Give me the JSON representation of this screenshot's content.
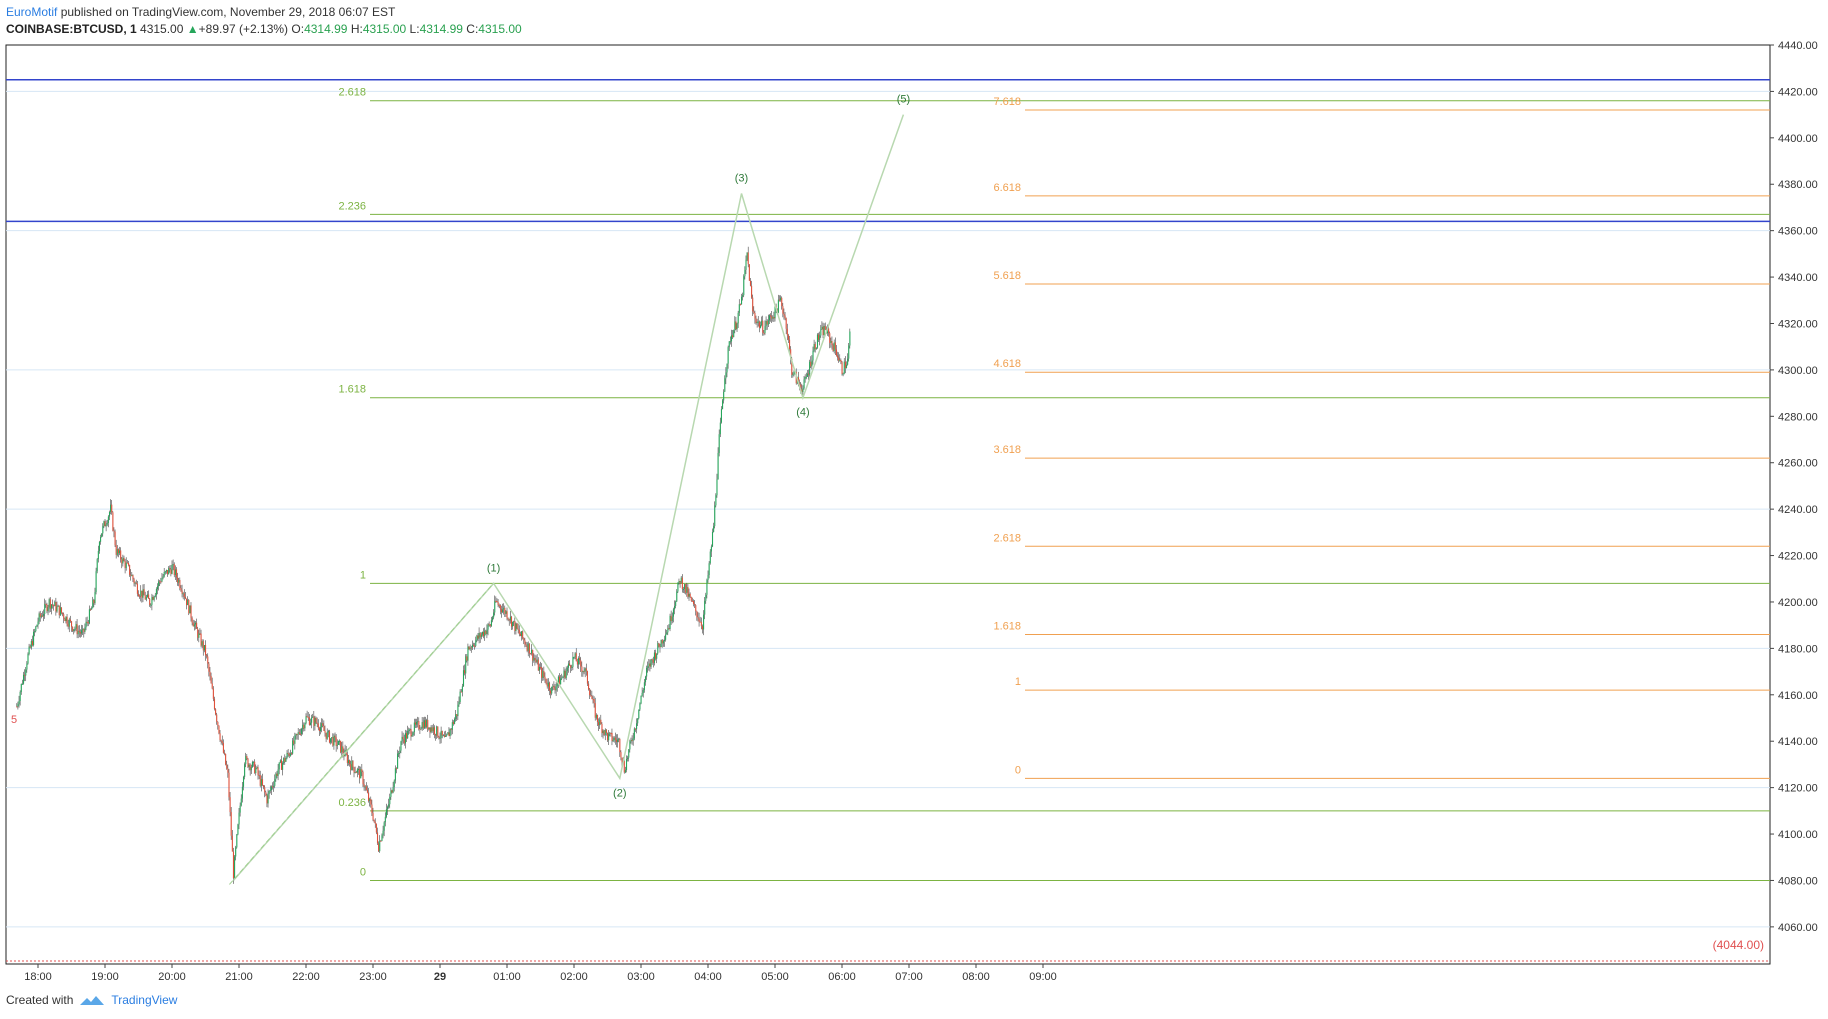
{
  "header": {
    "brand": "EuroMotif",
    "published": " published on TradingView.com, November 29, 2018 06:07 EST",
    "symbol": "COINBASE:BTCUSD, 1",
    "price": "4315.00",
    "change": "+89.97 (+2.13%)",
    "o_label": "O:",
    "o_value": "4314.99",
    "h_label": "H:",
    "h_value": "4315.00",
    "l_label": "L:",
    "l_value": "4314.99",
    "c_label": "C:",
    "c_value": "4315.00"
  },
  "footer": {
    "created_with": "Created with",
    "brand": "TradingView"
  },
  "colors": {
    "up": "#26a65b",
    "down": "#e0503a",
    "green_fib": "#7cb342",
    "orange_fib": "#f0a050",
    "blue_line": "#3344cc",
    "wave": "#b8d8b0",
    "grid": "#d6e6f5",
    "red_label": "#e05050"
  },
  "chart_data": {
    "type": "candlestick",
    "symbol": "COINBASE:BTCUSD",
    "interval": "1",
    "ylim": [
      4044,
      4440
    ],
    "y_ticks": [
      "4060.00",
      "4080.00",
      "4100.00",
      "4120.00",
      "4140.00",
      "4160.00",
      "4180.00",
      "4200.00",
      "4220.00",
      "4240.00",
      "4260.00",
      "4280.00",
      "4300.00",
      "4320.00",
      "4340.00",
      "4360.00",
      "4380.00",
      "4400.00",
      "4420.00",
      "4440.00"
    ],
    "x_ticks": [
      "18:00",
      "19:00",
      "20:00",
      "21:00",
      "22:00",
      "23:00",
      "29",
      "01:00",
      "02:00",
      "03:00",
      "04:00",
      "05:00",
      "06:00",
      "07:00",
      "08:00",
      "09:00"
    ],
    "price_anchors": [
      [
        "17:41",
        4155
      ],
      [
        "17:50",
        4175
      ],
      [
        "18:00",
        4192
      ],
      [
        "18:10",
        4200
      ],
      [
        "18:20",
        4196
      ],
      [
        "18:30",
        4190
      ],
      [
        "18:40",
        4186
      ],
      [
        "18:50",
        4200
      ],
      [
        "18:55",
        4228
      ],
      [
        "19:05",
        4240
      ],
      [
        "19:10",
        4222
      ],
      [
        "19:20",
        4215
      ],
      [
        "19:30",
        4205
      ],
      [
        "19:40",
        4200
      ],
      [
        "19:50",
        4210
      ],
      [
        "20:00",
        4215
      ],
      [
        "20:10",
        4205
      ],
      [
        "20:20",
        4190
      ],
      [
        "20:30",
        4178
      ],
      [
        "20:40",
        4150
      ],
      [
        "20:50",
        4125
      ],
      [
        "20:55",
        4083
      ],
      [
        "21:05",
        4132
      ],
      [
        "21:15",
        4128
      ],
      [
        "21:25",
        4115
      ],
      [
        "21:35",
        4128
      ],
      [
        "21:45",
        4135
      ],
      [
        "22:00",
        4150
      ],
      [
        "22:10",
        4148
      ],
      [
        "22:20",
        4142
      ],
      [
        "22:30",
        4138
      ],
      [
        "22:40",
        4130
      ],
      [
        "22:50",
        4125
      ],
      [
        "23:00",
        4108
      ],
      [
        "23:05",
        4095
      ],
      [
        "23:15",
        4115
      ],
      [
        "23:25",
        4140
      ],
      [
        "23:35",
        4145
      ],
      [
        "23:45",
        4148
      ],
      [
        "23:55",
        4145
      ],
      [
        "00:05",
        4140
      ],
      [
        "00:15",
        4152
      ],
      [
        "00:25",
        4180
      ],
      [
        "00:35",
        4185
      ],
      [
        "00:45",
        4190
      ],
      [
        "00:50",
        4200
      ],
      [
        "01:00",
        4195
      ],
      [
        "01:10",
        4187
      ],
      [
        "01:20",
        4180
      ],
      [
        "01:30",
        4170
      ],
      [
        "01:40",
        4162
      ],
      [
        "01:50",
        4168
      ],
      [
        "02:00",
        4176
      ],
      [
        "02:10",
        4170
      ],
      [
        "02:20",
        4150
      ],
      [
        "02:30",
        4142
      ],
      [
        "02:40",
        4140
      ],
      [
        "02:45",
        4128
      ],
      [
        "02:55",
        4147
      ],
      [
        "03:05",
        4170
      ],
      [
        "03:15",
        4180
      ],
      [
        "03:25",
        4190
      ],
      [
        "03:35",
        4210
      ],
      [
        "03:45",
        4200
      ],
      [
        "03:55",
        4190
      ],
      [
        "04:05",
        4233
      ],
      [
        "04:10",
        4270
      ],
      [
        "04:15",
        4298
      ],
      [
        "04:20",
        4314
      ],
      [
        "04:25",
        4320
      ],
      [
        "04:30",
        4330
      ],
      [
        "04:35",
        4350
      ],
      [
        "04:40",
        4325
      ],
      [
        "04:45",
        4320
      ],
      [
        "04:50",
        4318
      ],
      [
        "04:55",
        4322
      ],
      [
        "05:00",
        4325
      ],
      [
        "05:05",
        4330
      ],
      [
        "05:10",
        4320
      ],
      [
        "05:15",
        4300
      ],
      [
        "05:20",
        4295
      ],
      [
        "05:25",
        4292
      ],
      [
        "05:30",
        4300
      ],
      [
        "05:35",
        4310
      ],
      [
        "05:40",
        4315
      ],
      [
        "05:45",
        4318
      ],
      [
        "05:50",
        4312
      ],
      [
        "05:55",
        4308
      ],
      [
        "06:00",
        4300
      ],
      [
        "06:05",
        4304
      ],
      [
        "06:07",
        4315
      ]
    ],
    "horizontal_lines": [
      {
        "name": "blue-upper",
        "y": 4425
      },
      {
        "name": "blue-lower",
        "y": 4364
      }
    ],
    "fib_green": {
      "levels": [
        {
          "label": "2.618",
          "y": 4416
        },
        {
          "label": "2.236",
          "y": 4367
        },
        {
          "label": "1.618",
          "y": 4288
        },
        {
          "label": "1",
          "y": 4208
        },
        {
          "label": "0.236",
          "y": 4110
        },
        {
          "label": "0",
          "y": 4080
        }
      ]
    },
    "fib_orange": {
      "levels": [
        {
          "label": "7.618",
          "y": 4412
        },
        {
          "label": "6.618",
          "y": 4375
        },
        {
          "label": "5.618",
          "y": 4337
        },
        {
          "label": "4.618",
          "y": 4299
        },
        {
          "label": "3.618",
          "y": 4262
        },
        {
          "label": "2.618",
          "y": 4224
        },
        {
          "label": "1.618",
          "y": 4186
        },
        {
          "label": "1",
          "y": 4162
        },
        {
          "label": "0",
          "y": 4124
        }
      ]
    },
    "elliott_wave": [
      {
        "label": "",
        "t": "20:55",
        "y": 4080
      },
      {
        "label": "(1)",
        "t": "00:48",
        "y": 4208
      },
      {
        "label": "(2)",
        "t": "02:41",
        "y": 4124
      },
      {
        "label": "(3)",
        "t": "04:30",
        "y": 4376
      },
      {
        "label": "(4)",
        "t": "05:25",
        "y": 4288
      },
      {
        "label": "(5)",
        "t": "06:55",
        "y": 4410
      }
    ],
    "bottom_price_label": "(4044.00)",
    "left_edge_label": "5"
  }
}
